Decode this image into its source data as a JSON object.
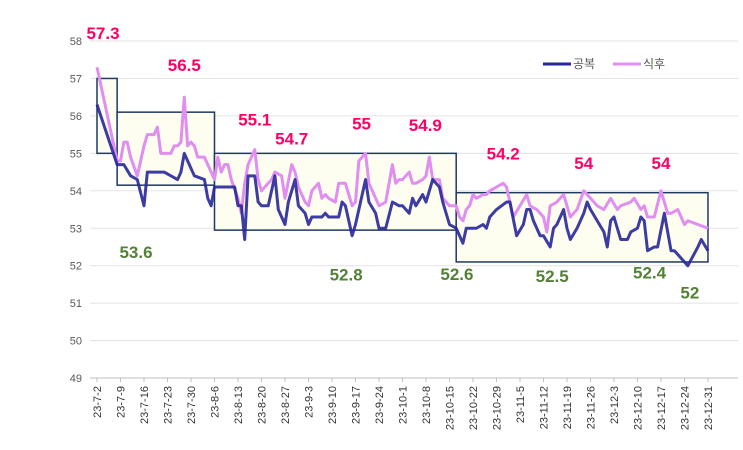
{
  "chart_data": {
    "type": "line",
    "start_date": "2023-07-02",
    "x_unit": "days since start",
    "ylim": [
      49,
      58
    ],
    "yticks": [
      "49",
      "50",
      "51",
      "52",
      "53",
      "54",
      "55",
      "56",
      "57",
      "58"
    ],
    "xticks": [
      "23-7-2",
      "23-7-9",
      "23-7-16",
      "23-7-23",
      "23-7-30",
      "23-8-6",
      "23-8-13",
      "23-8-20",
      "23-8-27",
      "23-9-3",
      "23-9-10",
      "23-9-17",
      "23-9-24",
      "23-10-1",
      "23-10-8",
      "23-10-15",
      "23-10-22",
      "23-10-29",
      "23-11-5",
      "23-11-12",
      "23-11-19",
      "23-11-26",
      "23-12-3",
      "23-12-10",
      "23-12-17",
      "23-12-24",
      "23-12-31"
    ],
    "grid": true,
    "legend_position": "top-right",
    "series": [
      {
        "name": "공복",
        "color": "#27279a",
        "points": [
          [
            0,
            56.3
          ],
          [
            6,
            54.7
          ],
          [
            8,
            54.7
          ],
          [
            10,
            54.4
          ],
          [
            12,
            54.3
          ],
          [
            14,
            53.6
          ],
          [
            15,
            54.5
          ],
          [
            20,
            54.5
          ],
          [
            22,
            54.4
          ],
          [
            24,
            54.3
          ],
          [
            25,
            54.5
          ],
          [
            26,
            55.0
          ],
          [
            27,
            54.8
          ],
          [
            29,
            54.4
          ],
          [
            32,
            54.3
          ],
          [
            33,
            53.8
          ],
          [
            34,
            53.6
          ],
          [
            35,
            54.1
          ],
          [
            41,
            54.1
          ],
          [
            42,
            53.6
          ],
          [
            43,
            53.6
          ],
          [
            44,
            52.7
          ],
          [
            45,
            54.4
          ],
          [
            47,
            54.4
          ],
          [
            48,
            53.7
          ],
          [
            49,
            53.6
          ],
          [
            51,
            53.6
          ],
          [
            53,
            54.4
          ],
          [
            54,
            53.5
          ],
          [
            56,
            53.1
          ],
          [
            57,
            53.7
          ],
          [
            59,
            54.3
          ],
          [
            60,
            53.6
          ],
          [
            62,
            53.4
          ],
          [
            63,
            53.1
          ],
          [
            64,
            53.3
          ],
          [
            67,
            53.3
          ],
          [
            68,
            53.4
          ],
          [
            69,
            53.3
          ],
          [
            72,
            53.3
          ],
          [
            73,
            53.7
          ],
          [
            74,
            53.6
          ],
          [
            76,
            52.8
          ],
          [
            77,
            53.1
          ],
          [
            78,
            53.5
          ],
          [
            80,
            54.3
          ],
          [
            81,
            53.7
          ],
          [
            83,
            53.4
          ],
          [
            84,
            53.0
          ],
          [
            86,
            53.0
          ],
          [
            88,
            53.7
          ],
          [
            90,
            53.6
          ],
          [
            91,
            53.6
          ],
          [
            93,
            53.4
          ],
          [
            94,
            53.8
          ],
          [
            95,
            53.6
          ],
          [
            97,
            53.9
          ],
          [
            98,
            53.7
          ],
          [
            100,
            54.3
          ],
          [
            102,
            54.1
          ],
          [
            103,
            53.7
          ],
          [
            105,
            53.1
          ],
          [
            107,
            53.0
          ],
          [
            109,
            52.6
          ],
          [
            110,
            53.0
          ],
          [
            113,
            53.0
          ],
          [
            115,
            53.1
          ],
          [
            116,
            53.0
          ],
          [
            117,
            53.3
          ],
          [
            119,
            53.5
          ],
          [
            122,
            53.7
          ],
          [
            123,
            53.7
          ],
          [
            125,
            52.8
          ],
          [
            127,
            53.1
          ],
          [
            128,
            53.5
          ],
          [
            129,
            53.5
          ],
          [
            130,
            53.2
          ],
          [
            132,
            52.8
          ],
          [
            133,
            52.8
          ],
          [
            135,
            52.5
          ],
          [
            136,
            53.0
          ],
          [
            137,
            53.1
          ],
          [
            139,
            53.5
          ],
          [
            140,
            53.0
          ],
          [
            141,
            52.7
          ],
          [
            143,
            53.0
          ],
          [
            145,
            53.4
          ],
          [
            146,
            53.7
          ],
          [
            147,
            53.5
          ],
          [
            149,
            53.2
          ],
          [
            151,
            52.9
          ],
          [
            152,
            52.5
          ],
          [
            153,
            53.2
          ],
          [
            154,
            53.3
          ],
          [
            155,
            53.0
          ],
          [
            156,
            52.7
          ],
          [
            158,
            52.7
          ],
          [
            159,
            52.9
          ],
          [
            161,
            53.0
          ],
          [
            162,
            53.3
          ],
          [
            163,
            53.2
          ],
          [
            164,
            52.4
          ],
          [
            166,
            52.5
          ],
          [
            167,
            52.5
          ],
          [
            169,
            53.4
          ],
          [
            171,
            52.4
          ],
          [
            172,
            52.4
          ],
          [
            176,
            52.0
          ],
          [
            179,
            52.5
          ],
          [
            180,
            52.7
          ],
          [
            182,
            52.4
          ]
        ]
      },
      {
        "name": "식후",
        "color": "#e08ef0",
        "points": [
          [
            0,
            57.3
          ],
          [
            6,
            54.8
          ],
          [
            7,
            54.8
          ],
          [
            8,
            55.3
          ],
          [
            9,
            55.3
          ],
          [
            10,
            54.9
          ],
          [
            12,
            54.4
          ],
          [
            14,
            55.2
          ],
          [
            15,
            55.5
          ],
          [
            17,
            55.5
          ],
          [
            18,
            55.7
          ],
          [
            19,
            55.0
          ],
          [
            22,
            55.0
          ],
          [
            23,
            55.2
          ],
          [
            24,
            55.2
          ],
          [
            25,
            55.3
          ],
          [
            26,
            56.5
          ],
          [
            27,
            55.2
          ],
          [
            28,
            55.3
          ],
          [
            29,
            55.2
          ],
          [
            30,
            54.9
          ],
          [
            32,
            54.9
          ],
          [
            33,
            54.7
          ],
          [
            34,
            54.5
          ],
          [
            35,
            54.3
          ],
          [
            36,
            54.9
          ],
          [
            37,
            54.5
          ],
          [
            38,
            54.7
          ],
          [
            39,
            54.7
          ],
          [
            40,
            54.3
          ],
          [
            42,
            53.8
          ],
          [
            43,
            53.4
          ],
          [
            44,
            54.2
          ],
          [
            45,
            54.7
          ],
          [
            47,
            55.1
          ],
          [
            48,
            54.3
          ],
          [
            49,
            54.0
          ],
          [
            51,
            54.2
          ],
          [
            52,
            54.3
          ],
          [
            53,
            54.5
          ],
          [
            55,
            54.4
          ],
          [
            56,
            53.8
          ],
          [
            58,
            54.7
          ],
          [
            59,
            54.5
          ],
          [
            60,
            54.1
          ],
          [
            62,
            53.7
          ],
          [
            63,
            53.6
          ],
          [
            64,
            54.0
          ],
          [
            66,
            54.2
          ],
          [
            67,
            53.8
          ],
          [
            68,
            53.9
          ],
          [
            69,
            53.8
          ],
          [
            71,
            53.7
          ],
          [
            72,
            54.2
          ],
          [
            74,
            54.2
          ],
          [
            76,
            53.6
          ],
          [
            77,
            53.7
          ],
          [
            78,
            54.8
          ],
          [
            80,
            55.0
          ],
          [
            81,
            54.2
          ],
          [
            83,
            53.8
          ],
          [
            84,
            53.6
          ],
          [
            86,
            53.7
          ],
          [
            88,
            54.7
          ],
          [
            89,
            54.2
          ],
          [
            90,
            54.3
          ],
          [
            91,
            54.3
          ],
          [
            93,
            54.5
          ],
          [
            94,
            54.2
          ],
          [
            95,
            54.2
          ],
          [
            97,
            54.3
          ],
          [
            98,
            54.4
          ],
          [
            99,
            54.9
          ],
          [
            100,
            54.3
          ],
          [
            102,
            54.3
          ],
          [
            103,
            53.8
          ],
          [
            105,
            53.6
          ],
          [
            107,
            53.6
          ],
          [
            108,
            53.3
          ],
          [
            109,
            53.2
          ],
          [
            110,
            53.5
          ],
          [
            111,
            53.6
          ],
          [
            112,
            53.9
          ],
          [
            113,
            53.8
          ],
          [
            115,
            53.9
          ],
          [
            116,
            53.9
          ],
          [
            117,
            54.0
          ],
          [
            119,
            54.1
          ],
          [
            121,
            54.2
          ],
          [
            122,
            54.1
          ],
          [
            124,
            53.3
          ],
          [
            126,
            53.6
          ],
          [
            128,
            53.9
          ],
          [
            129,
            53.6
          ],
          [
            131,
            53.5
          ],
          [
            132,
            53.4
          ],
          [
            133,
            53.3
          ],
          [
            134,
            52.9
          ],
          [
            135,
            53.6
          ],
          [
            137,
            53.7
          ],
          [
            139,
            53.9
          ],
          [
            141,
            53.3
          ],
          [
            143,
            53.5
          ],
          [
            145,
            54.0
          ],
          [
            147,
            53.8
          ],
          [
            149,
            53.6
          ],
          [
            151,
            53.5
          ],
          [
            153,
            53.8
          ],
          [
            155,
            53.5
          ],
          [
            156,
            53.6
          ],
          [
            159,
            53.7
          ],
          [
            160,
            53.8
          ],
          [
            162,
            53.5
          ],
          [
            163,
            53.6
          ],
          [
            164,
            53.3
          ],
          [
            166,
            53.3
          ],
          [
            168,
            54.0
          ],
          [
            170,
            53.4
          ],
          [
            171,
            53.4
          ],
          [
            173,
            53.5
          ],
          [
            175,
            53.1
          ],
          [
            176,
            53.2
          ],
          [
            179,
            53.1
          ],
          [
            182,
            53.0
          ]
        ]
      }
    ],
    "ranges": [
      {
        "x": [
          0,
          6
        ],
        "y": [
          55.0,
          57.0
        ]
      },
      {
        "x": [
          6,
          35
        ],
        "y": [
          54.15,
          56.1
        ]
      },
      {
        "x": [
          35,
          107
        ],
        "y": [
          52.95,
          55.0
        ]
      },
      {
        "x": [
          107,
          182
        ],
        "y": [
          52.1,
          53.95
        ]
      }
    ],
    "annotations": [
      {
        "text": "57.3",
        "type": "max",
        "day": 0,
        "value": 57.3
      },
      {
        "text": "56.5",
        "type": "max",
        "day": 26,
        "value": 56.5
      },
      {
        "text": "55.1",
        "type": "max",
        "day": 47,
        "value": 55.1
      },
      {
        "text": "54.7",
        "type": "max",
        "day": 58,
        "value": 54.7
      },
      {
        "text": "55",
        "type": "max",
        "day": 80,
        "value": 55.0
      },
      {
        "text": "54.9",
        "type": "max",
        "day": 99,
        "value": 54.9
      },
      {
        "text": "54.2",
        "type": "max",
        "day": 121,
        "value": 54.2
      },
      {
        "text": "54",
        "type": "max",
        "day": 145,
        "value": 54.0
      },
      {
        "text": "54",
        "type": "max",
        "day": 168,
        "value": 54.0
      },
      {
        "text": "53.6",
        "type": "min",
        "day": 14,
        "value": 53.6
      },
      {
        "text": "52.8",
        "type": "min",
        "day": 76,
        "value": 52.8
      },
      {
        "text": "52.6",
        "type": "min",
        "day": 109,
        "value": 52.6
      },
      {
        "text": "52.5",
        "type": "min",
        "day": 135,
        "value": 52.5
      },
      {
        "text": "52.4",
        "type": "min",
        "day": 164,
        "value": 52.4
      },
      {
        "text": "52",
        "type": "min",
        "day": 176,
        "value": 52.0
      }
    ],
    "colors": {
      "max_label": "#ff0066",
      "min_label": "#538135",
      "range_fill": "#fdfdf0",
      "range_stroke": "#1f3864"
    }
  }
}
